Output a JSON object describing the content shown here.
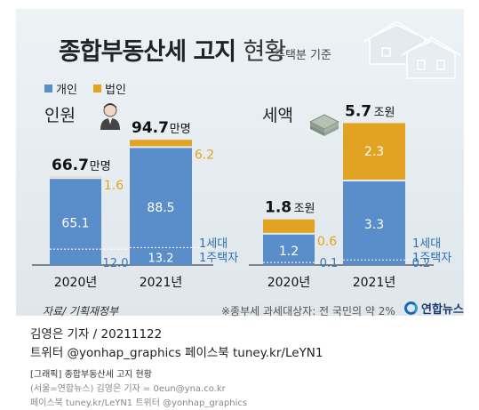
{
  "header": {
    "title_bold": "종합부동산세 고지",
    "title_light": "현황",
    "subtitle": "주택분 기준"
  },
  "legend": {
    "personal": "개인",
    "corporate": "법인",
    "personal_color": "#5a8ecb",
    "corporate_color": "#e3a322"
  },
  "chart_data": [
    {
      "type": "bar",
      "stacked": true,
      "section_label": "인원",
      "icon": "person-icon",
      "categories": [
        "2020년",
        "2021년"
      ],
      "series": [
        {
          "name": "개인",
          "values": [
            65.1,
            88.5
          ]
        },
        {
          "name": "법인",
          "values": [
            1.6,
            6.2
          ]
        }
      ],
      "totals": [
        66.7,
        94.7
      ],
      "total_unit": "만명",
      "subset": {
        "label_line1": "1세대",
        "label_line2": "1주택자",
        "values": [
          12.0,
          13.2
        ],
        "value_labels": [
          "12.0",
          "13.2"
        ]
      }
    },
    {
      "type": "bar",
      "stacked": true,
      "section_label": "세액",
      "icon": "money-stack-icon",
      "categories": [
        "2020년",
        "2021년"
      ],
      "series": [
        {
          "name": "개인",
          "values": [
            1.2,
            3.3
          ]
        },
        {
          "name": "법인",
          "values": [
            0.6,
            2.3
          ]
        }
      ],
      "totals": [
        1.8,
        5.7
      ],
      "total_unit": "조원",
      "subset": {
        "label_line1": "1세대",
        "label_line2": "1주택자",
        "values": [
          0.1,
          0.2
        ],
        "value_labels": [
          "0.1",
          "0.2"
        ]
      }
    }
  ],
  "footer": {
    "source": "자료/ 기획재정부",
    "footnote": "※종부세 과세대상자: 전 국민의 약 2%",
    "logo": "연합뉴스"
  },
  "byline": {
    "reporter": "김영은 기자 / 20211122",
    "social": "트위터 @yonhap_graphics  페이스북 tuney.kr/LeYN1"
  },
  "caption": {
    "line1": "[그래픽] 종합부동산세 고지 현황",
    "line2": "(서울=연합뉴스) 김영은 기자 = 0eun@yna.co.kr",
    "line3": "페이스북 tuney.kr/LeYN1 트위터 @yonhap_graphics"
  }
}
